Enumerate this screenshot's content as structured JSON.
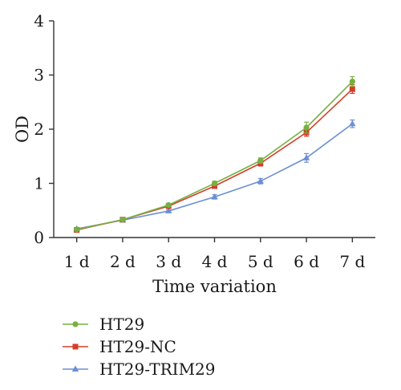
{
  "chart_data": {
    "type": "line",
    "title": "",
    "xlabel": "Time variation",
    "ylabel": "OD",
    "categories": [
      "1 d",
      "2 d",
      "3 d",
      "4 d",
      "5 d",
      "6 d",
      "7 d"
    ],
    "ylim": [
      0,
      4
    ],
    "yticks": [
      "0",
      "1",
      "2",
      "3",
      "4"
    ],
    "grid": false,
    "legend_position": "bottom-left",
    "series": [
      {
        "name": "HT29",
        "color": "#76b041",
        "marker": "circle",
        "values": [
          0.15,
          0.33,
          0.6,
          1.0,
          1.42,
          2.03,
          2.88
        ],
        "errors": [
          0.02,
          0.02,
          0.03,
          0.04,
          0.05,
          0.1,
          0.09
        ]
      },
      {
        "name": "HT29-NC",
        "color": "#d43d2a",
        "marker": "square",
        "values": [
          0.14,
          0.33,
          0.58,
          0.95,
          1.37,
          1.94,
          2.74
        ],
        "errors": [
          0.02,
          0.02,
          0.03,
          0.04,
          0.05,
          0.07,
          0.08
        ]
      },
      {
        "name": "HT29-TRIM29",
        "color": "#6b8fd4",
        "marker": "triangle",
        "values": [
          0.16,
          0.32,
          0.49,
          0.75,
          1.04,
          1.47,
          2.1
        ],
        "errors": [
          0.02,
          0.02,
          0.02,
          0.04,
          0.05,
          0.08,
          0.07
        ]
      }
    ]
  }
}
